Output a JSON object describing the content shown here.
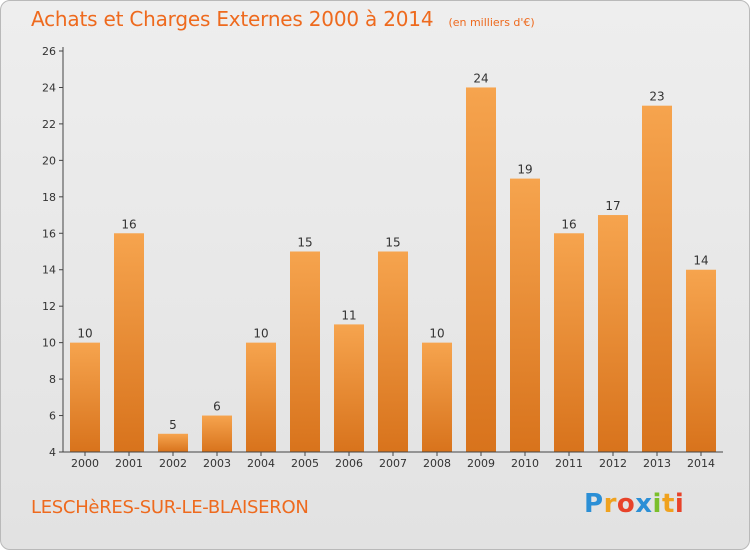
{
  "chart_data": {
    "type": "bar",
    "title": "Achats et Charges Externes 2000 à 2014",
    "subtitle": "(en milliers d'€)",
    "categories": [
      "2000",
      "2001",
      "2002",
      "2003",
      "2004",
      "2005",
      "2006",
      "2007",
      "2008",
      "2009",
      "2010",
      "2011",
      "2012",
      "2013",
      "2014"
    ],
    "values": [
      10,
      16,
      5,
      6,
      10,
      15,
      11,
      15,
      10,
      24,
      19,
      16,
      17,
      23,
      14
    ],
    "ylim": [
      4,
      26
    ],
    "yticks": [
      4,
      6,
      8,
      10,
      12,
      14,
      16,
      18,
      20,
      22,
      24,
      26
    ],
    "grid": false,
    "bar_color_top": "#f6a44e",
    "bar_color_bottom": "#d8731c"
  },
  "commune": "LESCHèRES-SUR-LE-BLAISERON",
  "logo": {
    "letters": [
      "P",
      "r",
      "o",
      "x",
      "i",
      "t",
      "i"
    ],
    "colors": [
      "#2b8fd6",
      "#f0a21e",
      "#e8432a",
      "#2b8fd6",
      "#7bbf2a",
      "#f0a21e",
      "#e8432a"
    ]
  },
  "colors": {
    "accent": "#ee6a1e",
    "axis": "#333333"
  }
}
